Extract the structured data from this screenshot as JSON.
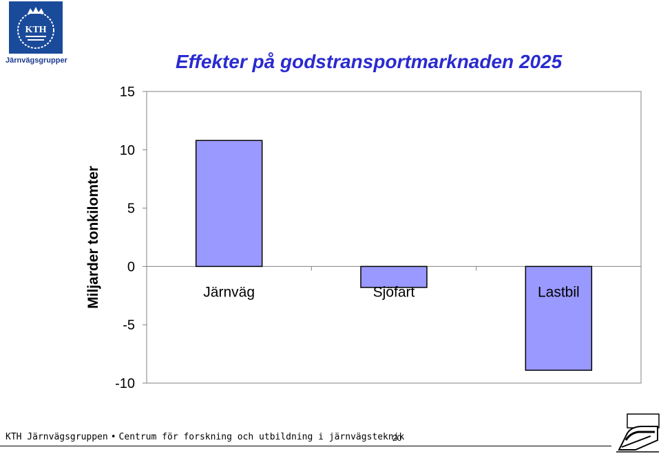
{
  "header": {
    "logo_icon": "kth-crown-logo-icon",
    "logo_text": "KTH",
    "org_label": "Järnvägsgrupper"
  },
  "colors": {
    "title": "#2a2ad0",
    "bar_fill": "#9999ff",
    "logo_bg": "#1a4a9a"
  },
  "chart_data": {
    "type": "bar",
    "title": "Effekter på godstransportmarknaden 2025",
    "ylabel": "Miljarder tonkilomter",
    "xlabel": "",
    "categories": [
      "Järnväg",
      "Sjöfart",
      "Lastbil"
    ],
    "values": [
      10.8,
      -1.8,
      -8.9
    ],
    "ylim": [
      -10,
      15
    ],
    "yticks": [
      "15",
      "10",
      "5",
      "0",
      "-5",
      "-10"
    ],
    "yticks_values": [
      15,
      10,
      5,
      0,
      -5,
      -10
    ],
    "grid": false,
    "legend": "none"
  },
  "footer": {
    "text_left": "KTH Järnvägsgruppen",
    "bullet": "•",
    "text_right": "Centrum för forskning och utbildning i järnvägsteknik",
    "page_number": "20",
    "train_icon": "train-icon"
  }
}
